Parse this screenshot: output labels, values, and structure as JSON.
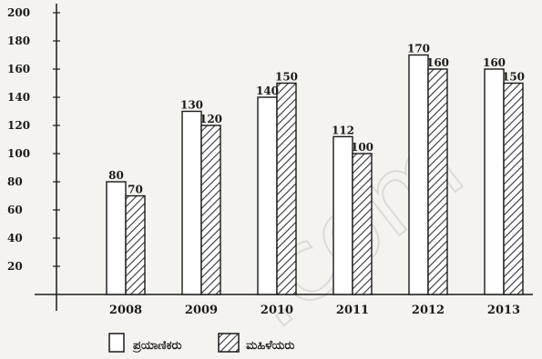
{
  "chart_data": {
    "type": "bar",
    "categories": [
      "2008",
      "2009",
      "2010",
      "2011",
      "2012",
      "2013"
    ],
    "series": [
      {
        "name": "ಪ್ರಯಾಣಿಕರು",
        "values": [
          80,
          130,
          140,
          112,
          170,
          160
        ],
        "style": "plain",
        "color": "#ffffff"
      },
      {
        "name": "ಮಹಿಳೆಯರು",
        "values": [
          70,
          120,
          150,
          100,
          160,
          150
        ],
        "style": "hatched",
        "color": "#555555"
      }
    ],
    "yticks": [
      "200",
      "180",
      "160",
      "140",
      "120",
      "100",
      "80",
      "60",
      "40",
      "20"
    ],
    "ylim": [
      0,
      200
    ],
    "title": "",
    "xlabel": "",
    "ylabel": "",
    "legend_placement": "bottom-center",
    "grid": false
  },
  "watermark": ".com"
}
